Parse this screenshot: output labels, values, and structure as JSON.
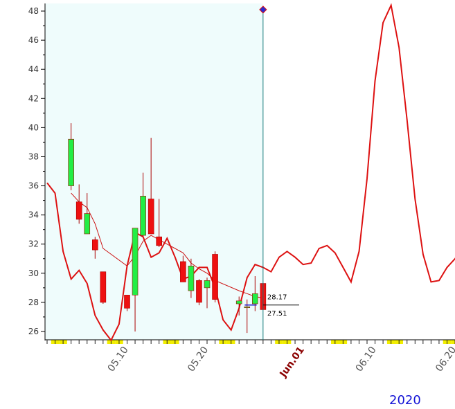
{
  "colors": {
    "history_bg": "#effcfc",
    "axis": "#000000",
    "up_candle": "#22ee44",
    "down_candle": "#ee1111",
    "forecast_line": "#dd1111",
    "ma_line": "#cc1111",
    "cursor_line": "#117777",
    "weekend_marker": "#f2ee00"
  },
  "year_label": "2020",
  "chart_data": {
    "type": "candlestick",
    "y_axis": {
      "range": [
        25.2,
        48.4
      ],
      "ticks": [
        "26",
        "28",
        "30",
        "32",
        "34",
        "36",
        "38",
        "40",
        "42",
        "44",
        "46",
        "48"
      ],
      "tick_values": [
        26,
        28,
        30,
        32,
        34,
        36,
        38,
        40,
        42,
        44,
        46,
        48
      ]
    },
    "x_axis": {
      "tick_labels": [
        {
          "day": 10,
          "label": "05.10",
          "month": false
        },
        {
          "day": 20,
          "label": "05.20",
          "month": false
        },
        {
          "day": 32,
          "label": "Jun.01",
          "month": true
        },
        {
          "day": 41,
          "label": "06.10",
          "month": false
        },
        {
          "day": 51,
          "label": "06.20",
          "month": false
        }
      ],
      "weekend_days": [
        1,
        2,
        8,
        9,
        15,
        16,
        22,
        23,
        29,
        30,
        36,
        37,
        43,
        44,
        50,
        51
      ]
    },
    "history_end_day": 27,
    "candles": [
      {
        "day": 3,
        "open": 36,
        "high": 40.3,
        "low": 35.7,
        "close": 39.2
      },
      {
        "day": 4,
        "open": 34.9,
        "high": 36.1,
        "low": 33.4,
        "close": 33.7
      },
      {
        "day": 5,
        "open": 32.7,
        "high": 35.5,
        "low": 32.7,
        "close": 34.1
      },
      {
        "day": 6,
        "open": 32.3,
        "high": 32.5,
        "low": 31,
        "close": 31.6
      },
      {
        "day": 7,
        "open": 30.1,
        "high": 30.1,
        "low": 27.9,
        "close": 28
      },
      {
        "day": 10,
        "open": 28.5,
        "high": 28.5,
        "low": 27.4,
        "close": 27.6
      },
      {
        "day": 11,
        "open": 28.5,
        "high": 33.1,
        "low": 26,
        "close": 33.1
      },
      {
        "day": 12,
        "open": 32.6,
        "high": 36.9,
        "low": 32.5,
        "close": 35.3
      },
      {
        "day": 13,
        "open": 35.1,
        "high": 39.3,
        "low": 32.7,
        "close": 32.7
      },
      {
        "day": 14,
        "open": 32.5,
        "high": 35.1,
        "low": 31.8,
        "close": 31.9
      },
      {
        "day": 17,
        "open": 30.8,
        "high": 31.2,
        "low": 29.4,
        "close": 29.4
      },
      {
        "day": 18,
        "open": 28.8,
        "high": 31,
        "low": 28.3,
        "close": 30.5
      },
      {
        "day": 19,
        "open": 29.5,
        "high": 29.6,
        "low": 27.8,
        "close": 28
      },
      {
        "day": 20,
        "open": 29,
        "high": 29.7,
        "low": 27.6,
        "close": 29.5
      },
      {
        "day": 21,
        "open": 31.3,
        "high": 31.5,
        "low": 28,
        "close": 28.2
      },
      {
        "day": 24,
        "open": 27.9,
        "high": 28.4,
        "low": 27.1,
        "close": 28.1
      },
      {
        "day": 25,
        "open": 27.7,
        "high": 28.2,
        "low": 25.9,
        "close": 27.7
      },
      {
        "day": 26,
        "open": 27.9,
        "high": 29.8,
        "low": 27.4,
        "close": 28.6
      },
      {
        "day": 27,
        "open": 29.3,
        "high": 29.3,
        "low": 27.5,
        "close": 27.5
      }
    ],
    "moving_average": [
      {
        "day": 3,
        "value": 35.5
      },
      {
        "day": 4,
        "value": 34.9
      },
      {
        "day": 5,
        "value": 34.5
      },
      {
        "day": 6,
        "value": 33.4
      },
      {
        "day": 7,
        "value": 31.7
      },
      {
        "day": 10,
        "value": 30.5
      },
      {
        "day": 11,
        "value": 31.2
      },
      {
        "day": 12,
        "value": 32.2
      },
      {
        "day": 13,
        "value": 32.6
      },
      {
        "day": 14,
        "value": 32.3
      },
      {
        "day": 17,
        "value": 31.4
      },
      {
        "day": 18,
        "value": 30.7
      },
      {
        "day": 19,
        "value": 30.3
      },
      {
        "day": 20,
        "value": 30.0
      },
      {
        "day": 21,
        "value": 29.5
      },
      {
        "day": 24,
        "value": 28.8
      },
      {
        "day": 25,
        "value": 28.6
      },
      {
        "day": 26,
        "value": 28.4
      },
      {
        "day": 27,
        "value": 28.3
      }
    ],
    "forecast_line": [
      {
        "day": 0,
        "value": 36.2
      },
      {
        "day": 1,
        "value": 35.5
      },
      {
        "day": 2,
        "value": 31.5
      },
      {
        "day": 3,
        "value": 29.6
      },
      {
        "day": 4,
        "value": 30.2
      },
      {
        "day": 5,
        "value": 29.3
      },
      {
        "day": 6,
        "value": 27.1
      },
      {
        "day": 7,
        "value": 26.1
      },
      {
        "day": 8,
        "value": 25.4
      },
      {
        "day": 9,
        "value": 26.5
      },
      {
        "day": 10,
        "value": 30.5
      },
      {
        "day": 11,
        "value": 32.8
      },
      {
        "day": 12,
        "value": 32.5
      },
      {
        "day": 13,
        "value": 31.1
      },
      {
        "day": 14,
        "value": 31.4
      },
      {
        "day": 15,
        "value": 32.4
      },
      {
        "day": 16,
        "value": 31.1
      },
      {
        "day": 17,
        "value": 29.6
      },
      {
        "day": 18,
        "value": 29.8
      },
      {
        "day": 19,
        "value": 30.4
      },
      {
        "day": 20,
        "value": 30.4
      },
      {
        "day": 21,
        "value": 29.0
      },
      {
        "day": 22,
        "value": 26.8
      },
      {
        "day": 23,
        "value": 26.1
      },
      {
        "day": 24,
        "value": 27.6
      },
      {
        "day": 25,
        "value": 29.7
      },
      {
        "day": 26,
        "value": 30.6
      },
      {
        "day": 27,
        "value": 30.4
      },
      {
        "day": 28,
        "value": 30.1
      },
      {
        "day": 29,
        "value": 31.1
      },
      {
        "day": 30,
        "value": 31.5
      },
      {
        "day": 31,
        "value": 31.1
      },
      {
        "day": 32,
        "value": 30.6
      },
      {
        "day": 33,
        "value": 30.7
      },
      {
        "day": 34,
        "value": 31.7
      },
      {
        "day": 35,
        "value": 31.9
      },
      {
        "day": 36,
        "value": 31.4
      },
      {
        "day": 37,
        "value": 30.4
      },
      {
        "day": 38,
        "value": 29.4
      },
      {
        "day": 39,
        "value": 31.5
      },
      {
        "day": 40,
        "value": 36.5
      },
      {
        "day": 41,
        "value": 43.2
      },
      {
        "day": 42,
        "value": 47.2
      },
      {
        "day": 43,
        "value": 48.4
      },
      {
        "day": 44,
        "value": 45.5
      },
      {
        "day": 45,
        "value": 40.5
      },
      {
        "day": 46,
        "value": 35.1
      },
      {
        "day": 47,
        "value": 31.3
      },
      {
        "day": 48,
        "value": 29.4
      },
      {
        "day": 49,
        "value": 29.5
      },
      {
        "day": 50,
        "value": 30.4
      },
      {
        "day": 51,
        "value": 31.0
      },
      {
        "day": 52,
        "value": 31.8
      }
    ],
    "price_labels": [
      {
        "text": "28.17",
        "value": 28.17
      },
      {
        "text": "27.51",
        "value": 27.51
      }
    ],
    "marker_value": 48.1
  }
}
